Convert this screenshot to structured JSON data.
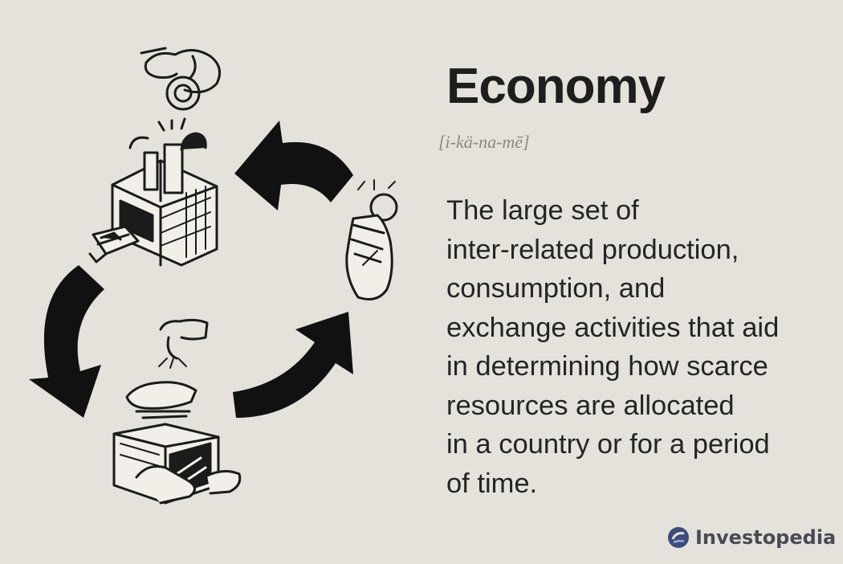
{
  "title": "Economy",
  "pronunciation": "[i-kä-na-mē]",
  "definition_lines": [
    "The large set of",
    "inter-related production,",
    "consumption, and",
    "exchange activities that aid",
    "in determining how scarce",
    "resources are allocated",
    "in a country or for a period",
    "of time."
  ],
  "brand": {
    "name": "Investopedia"
  },
  "colors": {
    "background": "#e5e2db",
    "ink": "#1b1b1b",
    "brand": "#3d4a7a"
  },
  "icons": [
    "hand-coin-icon",
    "factory-icon",
    "hand-money-icon",
    "handshake-icon",
    "delivery-box-icon",
    "cycle-arrows-icon"
  ]
}
